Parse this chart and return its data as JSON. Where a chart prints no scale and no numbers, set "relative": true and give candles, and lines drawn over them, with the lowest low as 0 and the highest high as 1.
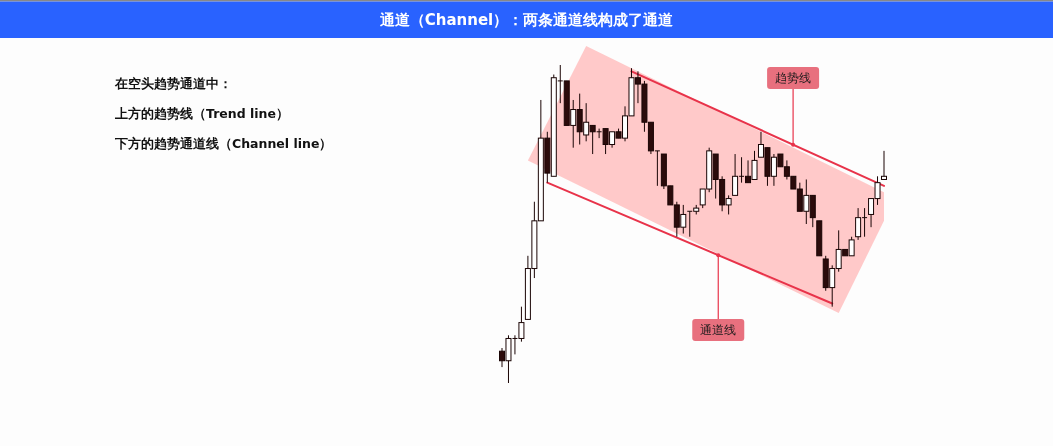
{
  "chart_data": {
    "type": "candlestick",
    "title": "通道（Channel）：两条通道线构成了通道",
    "relative": true,
    "categories": [
      null,
      null,
      null,
      null,
      null,
      null,
      null,
      null,
      null,
      null,
      null,
      null,
      null,
      null,
      null,
      null,
      null,
      null,
      null,
      null,
      null,
      null,
      null,
      null,
      null,
      null,
      null,
      null,
      null,
      null,
      null,
      null,
      null,
      null,
      null,
      null,
      null,
      null,
      null,
      null,
      null,
      null,
      null,
      null,
      null,
      null,
      null,
      null,
      null,
      null,
      null,
      null,
      null,
      null,
      null,
      null,
      null,
      null,
      null,
      null
    ],
    "ohlc": [
      [
        0.1,
        0.11,
        0.05,
        0.07
      ],
      [
        0.07,
        0.15,
        0,
        0.14
      ],
      [
        0.14,
        0.15,
        0.09,
        0.14
      ],
      [
        0.14,
        0.24,
        0.13,
        0.19
      ],
      [
        0.2,
        0.4,
        0.2,
        0.36
      ],
      [
        0.36,
        0.57,
        0.33,
        0.51
      ],
      [
        0.51,
        0.89,
        0.51,
        0.77
      ],
      [
        0.77,
        0.79,
        0.63,
        0.66
      ],
      [
        0.65,
        0.97,
        0.65,
        0.96
      ],
      [
        0.95,
        1,
        0.88,
        0.95
      ],
      [
        0.95,
        0.95,
        0.81,
        0.81
      ],
      [
        0.81,
        0.89,
        0.74,
        0.86
      ],
      [
        0.86,
        0.91,
        0.75,
        0.79
      ],
      [
        0.78,
        0.88,
        0.76,
        0.82
      ],
      [
        0.81,
        0.81,
        0.72,
        0.79
      ],
      [
        0.79,
        0.8,
        0.77,
        0.79
      ],
      [
        0.8,
        0.8,
        0.72,
        0.75
      ],
      [
        0.75,
        0.79,
        0.74,
        0.79
      ],
      [
        0.79,
        0.8,
        0.77,
        0.77
      ],
      [
        0.77,
        0.87,
        0.76,
        0.84
      ],
      [
        0.84,
        0.99,
        0.84,
        0.96
      ],
      [
        0.96,
        0.98,
        0.88,
        0.94
      ],
      [
        0.94,
        0.95,
        0.79,
        0.82
      ],
      [
        0.82,
        0.82,
        0.72,
        0.73
      ],
      [
        0.73,
        0.73,
        0.62,
        0.73
      ],
      [
        0.72,
        0.72,
        0.61,
        0.62
      ],
      [
        0.62,
        0.62,
        0.56,
        0.56
      ],
      [
        0.56,
        0.57,
        0.46,
        0.49
      ],
      [
        0.49,
        0.56,
        0.47,
        0.53
      ],
      [
        0.54,
        0.54,
        0.46,
        0.54
      ],
      [
        0.54,
        0.56,
        0.53,
        0.55
      ],
      [
        0.56,
        0.61,
        0.55,
        0.61
      ],
      [
        0.61,
        0.74,
        0.6,
        0.73
      ],
      [
        0.72,
        0.72,
        0.58,
        0.64
      ],
      [
        0.64,
        0.65,
        0.54,
        0.56
      ],
      [
        0.56,
        0.59,
        0.53,
        0.58
      ],
      [
        0.59,
        0.72,
        0.59,
        0.65
      ],
      [
        0.65,
        0.71,
        0.63,
        0.65
      ],
      [
        0.65,
        0.7,
        0.63,
        0.63
      ],
      [
        0.64,
        0.73,
        0.64,
        0.7
      ],
      [
        0.71,
        0.79,
        0.71,
        0.75
      ],
      [
        0.74,
        0.74,
        0.62,
        0.65
      ],
      [
        0.65,
        0.72,
        0.62,
        0.71
      ],
      [
        0.72,
        0.72,
        0.68,
        0.68
      ],
      [
        0.68,
        0.7,
        0.64,
        0.65
      ],
      [
        0.65,
        0.65,
        0.61,
        0.61
      ],
      [
        0.61,
        0.63,
        0.54,
        0.54
      ],
      [
        0.54,
        0.64,
        0.5,
        0.59
      ],
      [
        0.59,
        0.59,
        0.49,
        0.52
      ],
      [
        0.51,
        0.51,
        0.4,
        0.4
      ],
      [
        0.39,
        0.4,
        0.29,
        0.3
      ],
      [
        0.3,
        0.37,
        0.24,
        0.36
      ],
      [
        0.36,
        0.48,
        0.35,
        0.42
      ],
      [
        0.42,
        0.42,
        0.4,
        0.4
      ],
      [
        0.4,
        0.46,
        0.4,
        0.45
      ],
      [
        0.46,
        0.55,
        0.45,
        0.52
      ],
      [
        0.52,
        0.55,
        0.46,
        0.52
      ],
      [
        0.53,
        0.58,
        0.49,
        0.58
      ],
      [
        0.58,
        0.65,
        0.56,
        0.63
      ],
      [
        0.64,
        0.73,
        0.64,
        0.65
      ]
    ],
    "series": [
      {
        "type": "area",
        "color": "#ffc9c9",
        "values": [
          null,
          null,
          null,
          null,
          null,
          null,
          null,
          null,
          null,
          null,
          null,
          null,
          null,
          null,
          null,
          null,
          null,
          null,
          null,
          null,
          null,
          null,
          null,
          null,
          null,
          null,
          null,
          null,
          null,
          null,
          null,
          null,
          null,
          null,
          null,
          null,
          null,
          null,
          null,
          null,
          null,
          null,
          null,
          null,
          null,
          null,
          null,
          null,
          null,
          null,
          null,
          null,
          null,
          null,
          null,
          null,
          null,
          null,
          null,
          null
        ],
        "upper": [
          null,
          null,
          null,
          null,
          0.7,
          null,
          null,
          null,
          null,
          null,
          null,
          null,
          null,
          1.06,
          null,
          null,
          null,
          null,
          null,
          null,
          null,
          null,
          null,
          null,
          null,
          null,
          null,
          null,
          null,
          null,
          null,
          null,
          null,
          null,
          null,
          null,
          null,
          null,
          null,
          null,
          null,
          null,
          null,
          null,
          null,
          null,
          null,
          null,
          null,
          null,
          null,
          null,
          0.67,
          null,
          null,
          null,
          null,
          null,
          null,
          0.6
        ],
        "lower": [
          null,
          null,
          null,
          null,
          0.7,
          null,
          null,
          null,
          null,
          null,
          null,
          null,
          null,
          0.61,
          null,
          null,
          null,
          null,
          null,
          null,
          null,
          null,
          null,
          null,
          null,
          null,
          null,
          null,
          null,
          null,
          null,
          null,
          null,
          null,
          null,
          null,
          null,
          null,
          null,
          null,
          null,
          null,
          null,
          null,
          null,
          null,
          null,
          null,
          null,
          null,
          null,
          null,
          0.22,
          null,
          null,
          null,
          null,
          null,
          null,
          0.51
        ]
      },
      {
        "type": "line",
        "values": [
          null,
          null,
          null,
          null,
          null,
          null,
          null,
          null,
          null,
          null,
          null,
          null,
          null,
          null,
          null,
          null,
          null,
          null,
          null,
          null,
          0.98,
          null,
          null,
          null,
          null,
          null,
          null,
          null,
          null,
          null,
          null,
          null,
          null,
          null,
          null,
          null,
          null,
          null,
          null,
          null,
          null,
          null,
          null,
          null,
          null,
          null,
          null,
          null,
          null,
          null,
          null,
          null,
          null,
          null,
          null,
          null,
          null,
          null,
          null,
          0.62
        ],
        "color": "#e8334a"
      },
      {
        "type": "line",
        "values": [
          null,
          null,
          null,
          null,
          null,
          null,
          null,
          0.63,
          null,
          null,
          null,
          null,
          null,
          null,
          null,
          null,
          null,
          null,
          null,
          null,
          null,
          null,
          null,
          null,
          null,
          null,
          null,
          null,
          null,
          null,
          null,
          null,
          null,
          null,
          null,
          null,
          null,
          null,
          null,
          null,
          null,
          null,
          null,
          null,
          null,
          null,
          null,
          null,
          null,
          null,
          null,
          0.25,
          null,
          null,
          null,
          null,
          null,
          null,
          null,
          null
        ],
        "color": "#e8334a"
      }
    ],
    "annotations": [
      "在空头趋势通道中：",
      "上方的趋势线（Trend line）",
      "下方的趋势通道线（Channel line）",
      "趋势线",
      "通道线"
    ]
  }
}
